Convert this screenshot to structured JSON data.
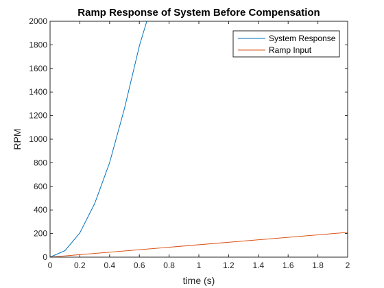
{
  "chart_data": {
    "type": "line",
    "title": "Ramp Response of System Before Compensation",
    "xlabel": "time (s)",
    "ylabel": "RPM",
    "xlim": [
      0,
      2
    ],
    "ylim": [
      0,
      2000
    ],
    "xticks": [
      0,
      0.2,
      0.4,
      0.6,
      0.8,
      1,
      1.2,
      1.4,
      1.6,
      1.8,
      2
    ],
    "xtick_labels": [
      "0",
      "0.2",
      "0.4",
      "0.6",
      "0.8",
      "1",
      "1.2",
      "1.4",
      "1.6",
      "1.8",
      "2"
    ],
    "yticks": [
      0,
      200,
      400,
      600,
      800,
      1000,
      1200,
      1400,
      1600,
      1800,
      2000
    ],
    "ytick_labels": [
      "0",
      "200",
      "400",
      "600",
      "800",
      "1000",
      "1200",
      "1400",
      "1600",
      "1800",
      "2000"
    ],
    "grid": false,
    "legend_position": "top-right",
    "series": [
      {
        "name": "System Response",
        "color": "#0072BD",
        "x": [
          0,
          0.1,
          0.2,
          0.3,
          0.4,
          0.5,
          0.6,
          0.65
        ],
        "y": [
          0,
          55,
          205,
          455,
          800,
          1260,
          1790,
          2000
        ]
      },
      {
        "name": "Ramp Input",
        "color": "#D95319",
        "x": [
          0,
          2
        ],
        "y": [
          0,
          210
        ]
      }
    ]
  }
}
